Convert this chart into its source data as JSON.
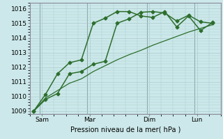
{
  "xlabel": "Pression niveau de la mer( hPa )",
  "bg_color": "#cce8ea",
  "grid_color": "#aacccc",
  "line_color": "#2d6e2d",
  "day_line_color": "#8eaaaa",
  "ylim": [
    1008.8,
    1016.4
  ],
  "xlim": [
    -0.3,
    15.7
  ],
  "yticks": [
    1009,
    1010,
    1011,
    1012,
    1013,
    1014,
    1015,
    1016
  ],
  "day_positions": [
    0.5,
    4.5,
    9.5,
    13.5
  ],
  "x_tick_pos": [
    0.7,
    4.7,
    9.7,
    13.7
  ],
  "x_tick_labels": [
    "Sam",
    "Mar",
    "Dim",
    "Lun"
  ],
  "series1": [
    1009.0,
    1009.8,
    1010.2,
    1011.55,
    1011.7,
    1012.2,
    1012.4,
    1015.0,
    1015.3,
    1015.75,
    1015.8,
    1015.7,
    1015.15,
    1015.55,
    1015.1,
    1015.0
  ],
  "series2": [
    1009.0,
    1010.15,
    1011.55,
    1012.3,
    1012.5,
    1015.0,
    1015.35,
    1015.8,
    1015.8,
    1015.5,
    1015.4,
    1015.8,
    1014.75,
    1015.5,
    1014.5,
    1015.05
  ],
  "series3": [
    1009.0,
    1009.9,
    1010.4,
    1010.9,
    1011.2,
    1011.7,
    1012.1,
    1012.5,
    1012.85,
    1013.15,
    1013.5,
    1013.8,
    1014.1,
    1014.4,
    1014.65,
    1014.9
  ],
  "marker": "D",
  "markersize": 2.5,
  "lw1": 1.1,
  "lw2": 1.1,
  "lw3": 0.9
}
